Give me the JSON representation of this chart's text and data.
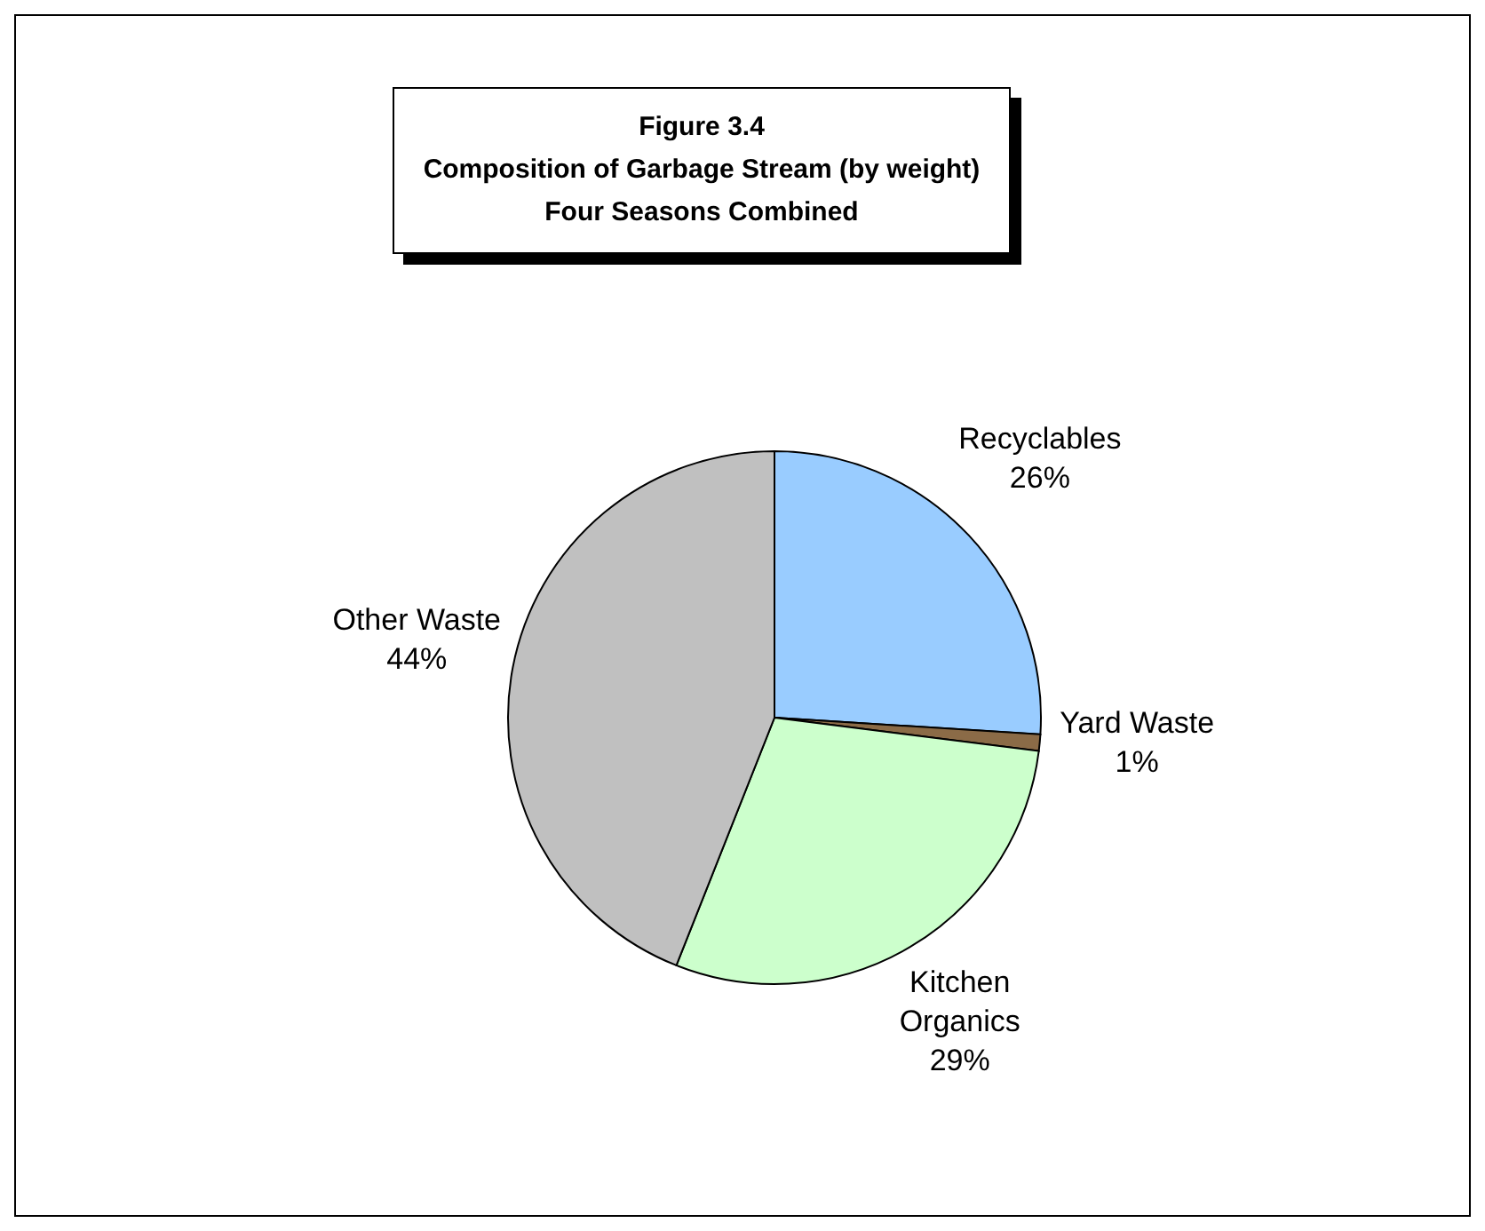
{
  "chart_data": {
    "type": "pie",
    "title": "Figure 3.4\nComposition of Garbage Stream (by weight)\nFour Seasons Combined",
    "categories": [
      "Recyclables",
      "Yard Waste",
      "Kitchen Organics",
      "Other Waste"
    ],
    "values": [
      26,
      1,
      29,
      44
    ],
    "value_labels": [
      "26%",
      "1%",
      "29%",
      "44%"
    ],
    "colors": [
      "#99ccff",
      "#8b6b47",
      "#ccffcc",
      "#c0c0c0"
    ],
    "legend": false
  }
}
